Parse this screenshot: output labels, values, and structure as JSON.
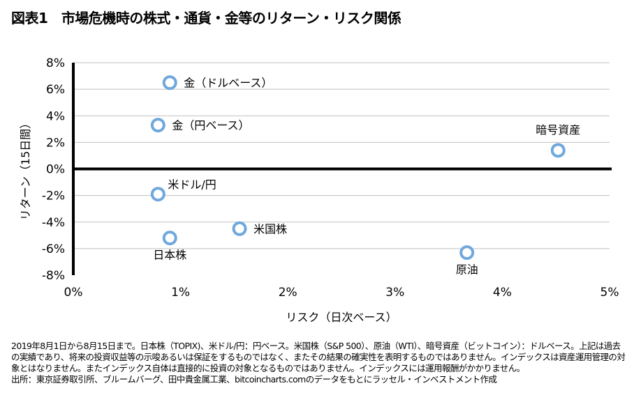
{
  "title": "図表1　市場危機時の株式・通貨・金等のリターン・リスク関係",
  "chart_data": {
    "type": "scatter",
    "xlabel": "リスク（日次ベース）",
    "ylabel": "リターン（15日間）",
    "xlim": [
      0,
      5
    ],
    "ylim": [
      -8,
      8
    ],
    "xticks": [
      0,
      1,
      2,
      3,
      4,
      5
    ],
    "xtick_labels": [
      "0%",
      "1%",
      "2%",
      "3%",
      "4%",
      "5%"
    ],
    "yticks": [
      8,
      6,
      4,
      2,
      0,
      -2,
      -4,
      -6,
      -8
    ],
    "ytick_labels": [
      "8%",
      "6%",
      "4%",
      "2%",
      "0%",
      "-2%",
      "-4%",
      "-6%",
      "-8%"
    ],
    "grid": "horizontal",
    "marker_color": "#6fa8dc",
    "points": [
      {
        "label": "金（ドルベース）",
        "x": 0.9,
        "y": 6.5,
        "label_pos": "right"
      },
      {
        "label": "金（円ベース）",
        "x": 0.79,
        "y": 3.3,
        "label_pos": "right"
      },
      {
        "label": "暗号資産",
        "x": 4.52,
        "y": 1.4,
        "label_pos": "above"
      },
      {
        "label": "米ドル/円",
        "x": 0.79,
        "y": -1.9,
        "label_pos": "upper-right"
      },
      {
        "label": "日本株",
        "x": 0.9,
        "y": -5.2,
        "label_pos": "below"
      },
      {
        "label": "米国株",
        "x": 1.55,
        "y": -4.5,
        "label_pos": "right"
      },
      {
        "label": "原油",
        "x": 3.67,
        "y": -6.3,
        "label_pos": "below"
      }
    ]
  },
  "notes": [
    "2019年8月1日から8月15日まで。日本株（TOPIX)、米ドル/円：円ベース。米国株（S&P 500）、原油（WTI）、暗号資産（ビットコイン）：ドルベース。上記は過去の実績であり、将来の投資収益等の示唆あるいは保証をするものではなく、またその結果の確実性を表明するものではありません。インデックスは資産運用管理の対象とはなりません。またインデックス自体は直接的に投資の対象となるものではありません。インデックスには運用報酬がかかりません。",
    "出所：東京証券取引所、ブルームバーグ、田中貴金属工業、bitcoincharts.comのデータをもとにラッセル・インベストメント作成"
  ]
}
